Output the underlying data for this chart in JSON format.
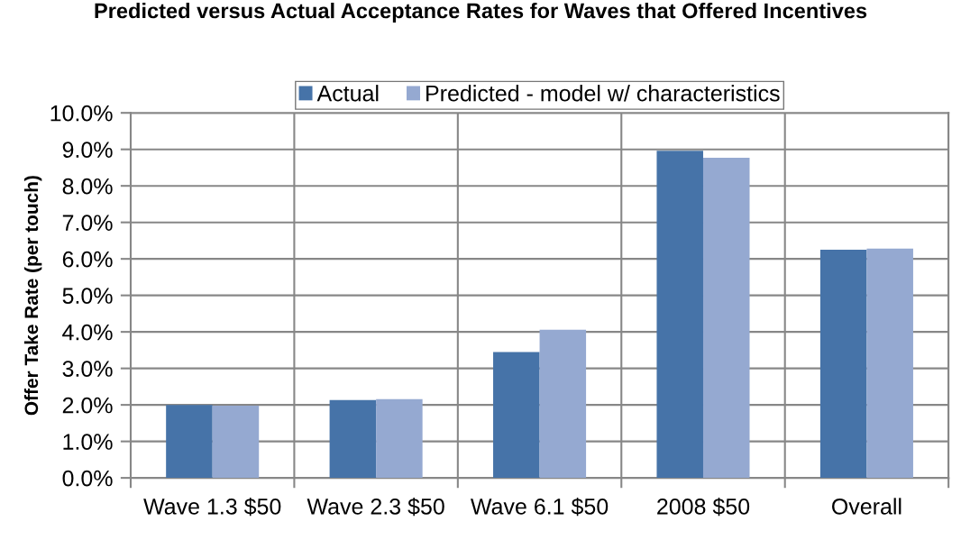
{
  "chart_data": {
    "type": "bar",
    "title": "Predicted versus Actual Acceptance Rates for Waves that Offered Incentives",
    "ylabel": "Offer Take Rate (per touch)",
    "categories": [
      "Wave 1.3 $50",
      "Wave 2.3 $50",
      "Wave 6.1 $50",
      "2008 $50",
      "Overall"
    ],
    "series": [
      {
        "name": "Actual",
        "color": "#4673a8",
        "values": [
          2.0,
          2.13,
          3.45,
          8.96,
          6.25
        ]
      },
      {
        "name": "Predicted - model w/ characteristics",
        "color": "#95a9d1",
        "values": [
          1.98,
          2.16,
          4.06,
          8.77,
          6.28
        ]
      }
    ],
    "ylim": [
      0,
      10
    ],
    "yticks": [
      {
        "value": 0,
        "label": "0.0%"
      },
      {
        "value": 1,
        "label": "1.0%"
      },
      {
        "value": 2,
        "label": "2.0%"
      },
      {
        "value": 3,
        "label": "3.0%"
      },
      {
        "value": 4,
        "label": "4.0%"
      },
      {
        "value": 5,
        "label": "5.0%"
      },
      {
        "value": 6,
        "label": "6.0%"
      },
      {
        "value": 7,
        "label": "7.0%"
      },
      {
        "value": 8,
        "label": "8.0%"
      },
      {
        "value": 9,
        "label": "9.0%"
      },
      {
        "value": 10,
        "label": "10.0%"
      }
    ],
    "grid": true,
    "legend": "top"
  }
}
